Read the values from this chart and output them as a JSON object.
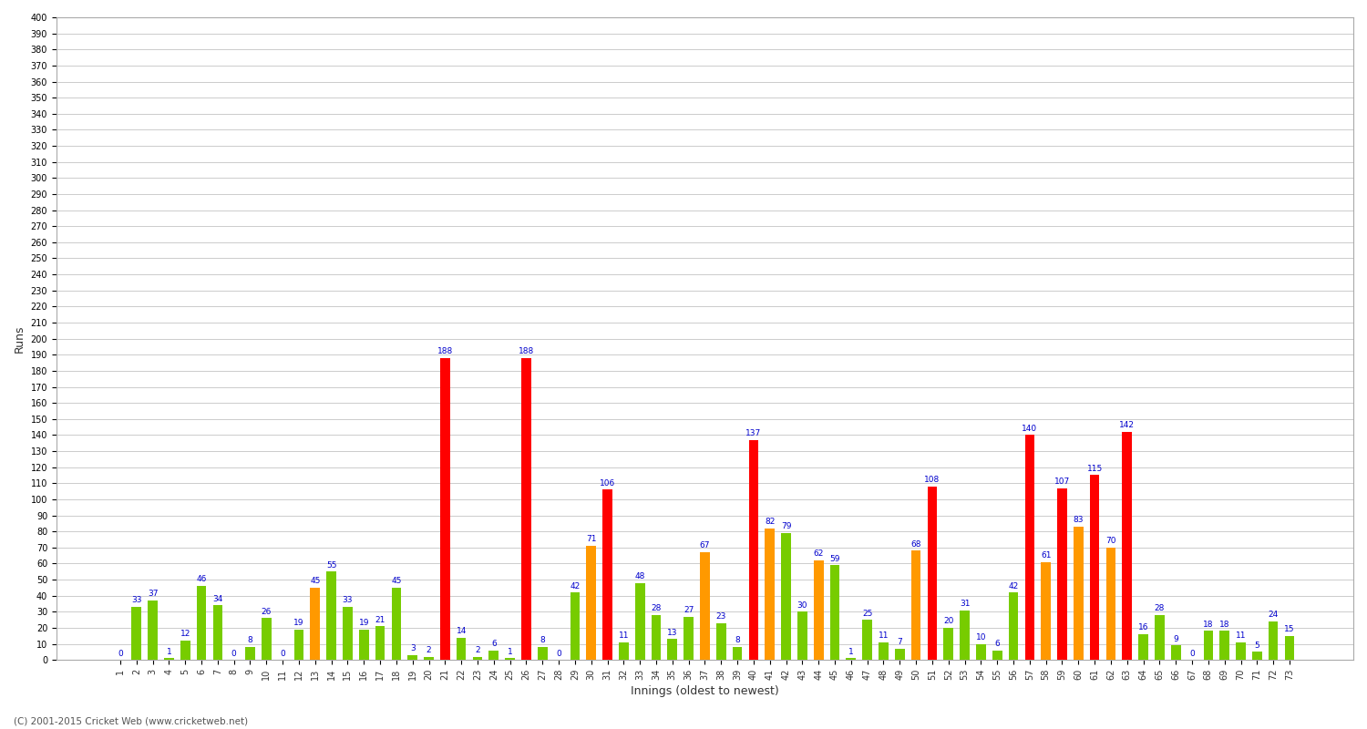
{
  "title": "",
  "xlabel": "Innings (oldest to newest)",
  "ylabel": "Runs",
  "background_color": "#ffffff",
  "grid_color": "#cccccc",
  "ylim": [
    0,
    400
  ],
  "footer": "(C) 2001-2015 Cricket Web (www.cricketweb.net)",
  "innings_data": [
    [
      1,
      0,
      "#77cc00"
    ],
    [
      2,
      33,
      "#77cc00"
    ],
    [
      3,
      37,
      "#77cc00"
    ],
    [
      4,
      1,
      "#77cc00"
    ],
    [
      5,
      12,
      "#77cc00"
    ],
    [
      6,
      46,
      "#77cc00"
    ],
    [
      7,
      34,
      "#77cc00"
    ],
    [
      8,
      0,
      "#77cc00"
    ],
    [
      9,
      8,
      "#77cc00"
    ],
    [
      10,
      26,
      "#77cc00"
    ],
    [
      11,
      0,
      "#77cc00"
    ],
    [
      12,
      19,
      "#77cc00"
    ],
    [
      13,
      45,
      "#ff9900"
    ],
    [
      14,
      55,
      "#77cc00"
    ],
    [
      15,
      33,
      "#77cc00"
    ],
    [
      16,
      19,
      "#77cc00"
    ],
    [
      17,
      21,
      "#77cc00"
    ],
    [
      18,
      45,
      "#77cc00"
    ],
    [
      19,
      3,
      "#77cc00"
    ],
    [
      20,
      2,
      "#77cc00"
    ],
    [
      21,
      188,
      "#ff0000"
    ],
    [
      22,
      14,
      "#77cc00"
    ],
    [
      23,
      2,
      "#77cc00"
    ],
    [
      24,
      6,
      "#77cc00"
    ],
    [
      25,
      1,
      "#77cc00"
    ],
    [
      26,
      188,
      "#ff0000"
    ],
    [
      27,
      8,
      "#77cc00"
    ],
    [
      28,
      0,
      "#77cc00"
    ],
    [
      29,
      42,
      "#77cc00"
    ],
    [
      30,
      71,
      "#ff9900"
    ],
    [
      31,
      106,
      "#ff0000"
    ],
    [
      32,
      11,
      "#77cc00"
    ],
    [
      33,
      48,
      "#77cc00"
    ],
    [
      34,
      28,
      "#77cc00"
    ],
    [
      35,
      13,
      "#77cc00"
    ],
    [
      36,
      27,
      "#77cc00"
    ],
    [
      37,
      67,
      "#ff9900"
    ],
    [
      38,
      23,
      "#77cc00"
    ],
    [
      39,
      8,
      "#77cc00"
    ],
    [
      40,
      137,
      "#ff0000"
    ],
    [
      41,
      82,
      "#ff9900"
    ],
    [
      42,
      79,
      "#77cc00"
    ],
    [
      43,
      30,
      "#77cc00"
    ],
    [
      44,
      62,
      "#ff9900"
    ],
    [
      45,
      59,
      "#77cc00"
    ],
    [
      46,
      1,
      "#77cc00"
    ],
    [
      47,
      25,
      "#77cc00"
    ],
    [
      48,
      11,
      "#77cc00"
    ],
    [
      49,
      7,
      "#77cc00"
    ],
    [
      50,
      68,
      "#ff9900"
    ],
    [
      51,
      108,
      "#ff0000"
    ],
    [
      52,
      20,
      "#77cc00"
    ],
    [
      53,
      31,
      "#77cc00"
    ],
    [
      54,
      10,
      "#77cc00"
    ],
    [
      55,
      6,
      "#77cc00"
    ],
    [
      56,
      42,
      "#77cc00"
    ],
    [
      57,
      140,
      "#ff0000"
    ],
    [
      58,
      61,
      "#ff9900"
    ],
    [
      59,
      107,
      "#ff0000"
    ],
    [
      60,
      83,
      "#ff9900"
    ],
    [
      61,
      115,
      "#ff0000"
    ],
    [
      62,
      70,
      "#ff9900"
    ],
    [
      63,
      142,
      "#ff0000"
    ],
    [
      64,
      16,
      "#77cc00"
    ],
    [
      65,
      28,
      "#77cc00"
    ],
    [
      66,
      9,
      "#77cc00"
    ],
    [
      67,
      0,
      "#77cc00"
    ],
    [
      68,
      18,
      "#77cc00"
    ],
    [
      69,
      18,
      "#77cc00"
    ],
    [
      70,
      11,
      "#77cc00"
    ],
    [
      71,
      5,
      "#77cc00"
    ],
    [
      72,
      24,
      "#77cc00"
    ],
    [
      73,
      15,
      "#77cc00"
    ]
  ]
}
